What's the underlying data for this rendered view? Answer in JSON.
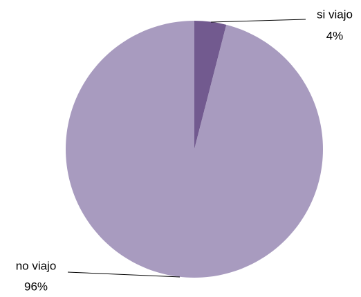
{
  "chart_data": {
    "type": "pie",
    "categories": [
      "si viajo",
      "no viajo"
    ],
    "values": [
      4,
      96
    ],
    "value_labels": [
      "4%",
      "96%"
    ],
    "colors": [
      "#725a8f",
      "#a89bbf"
    ]
  }
}
